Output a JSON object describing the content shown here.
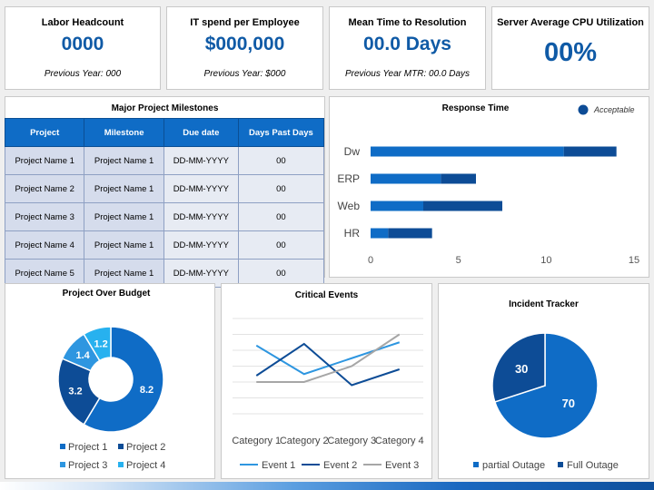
{
  "kpis": [
    {
      "title": "Labor Headcount",
      "value": "0000",
      "sub": "Previous Year: 000"
    },
    {
      "title": "IT spend per Employee",
      "value": "$000,000",
      "sub": "Previous Year: $000"
    },
    {
      "title": "Mean Time to Resolution",
      "value": "00.0 Days",
      "sub": "Previous Year MTR: 00.0 Days"
    },
    {
      "title": "Server Average CPU Utilization",
      "value": "00%",
      "sub": ""
    }
  ],
  "milestones": {
    "title": "Major Project Milestones",
    "headers": [
      "Project",
      "Milestone",
      "Due date",
      "Days Past Days"
    ],
    "rows": [
      [
        "Project Name 1",
        "Project Name 1",
        "DD-MM-YYYY",
        "00"
      ],
      [
        "Project Name 2",
        "Project Name 1",
        "DD-MM-YYYY",
        "00"
      ],
      [
        "Project Name 3",
        "Project Name 1",
        "DD-MM-YYYY",
        "00"
      ],
      [
        "Project Name 4",
        "Project Name 1",
        "DD-MM-YYYY",
        "00"
      ],
      [
        "Project Name 5",
        "Project Name 1",
        "DD-MM-YYYY",
        "00"
      ]
    ]
  },
  "colors": {
    "dark": "#0d4c96",
    "mid": "#0f6cc6",
    "light": "#2e96e0",
    "lighter": "#27b1ef",
    "gray": "#a6a6a6"
  },
  "chart_data": [
    {
      "type": "bar",
      "title": "Response Time",
      "orientation": "horizontal",
      "stacked": true,
      "categories": [
        "Dw",
        "ERP",
        "Web",
        "HR"
      ],
      "series": [
        {
          "name": "Acceptable",
          "values": [
            11,
            4,
            3,
            1
          ]
        },
        {
          "name": "",
          "values": [
            3,
            2,
            4.5,
            2.5
          ]
        }
      ],
      "xlim": [
        0,
        15
      ],
      "xticks": [
        "0",
        "5",
        "10",
        "15"
      ],
      "legend": "top-right"
    },
    {
      "type": "pie",
      "donut": true,
      "title": "Project Over Budget",
      "labels": [
        "Project 1",
        "Project 2",
        "Project 3",
        "Project 4"
      ],
      "values": [
        8.2,
        3.2,
        1.4,
        1.2
      ],
      "legend": "bottom"
    },
    {
      "type": "line",
      "title": "Critical Events",
      "categories": [
        "Category 1",
        "Category 2",
        "Category 3",
        "Category 4"
      ],
      "series": [
        {
          "name": "Event 1",
          "values": [
            4.3,
            2.5,
            3.5,
            4.5
          ]
        },
        {
          "name": "Event 2",
          "values": [
            2.4,
            4.4,
            1.8,
            2.8
          ]
        },
        {
          "name": "Event 3",
          "values": [
            2.0,
            2.0,
            3.0,
            5.0
          ]
        }
      ],
      "ylim": [
        0,
        6
      ],
      "grid": true,
      "legend": "bottom"
    },
    {
      "type": "pie",
      "title": "Incident Tracker",
      "labels": [
        "partial Outage",
        "Full Outage"
      ],
      "values": [
        70,
        30
      ],
      "legend": "bottom"
    }
  ]
}
